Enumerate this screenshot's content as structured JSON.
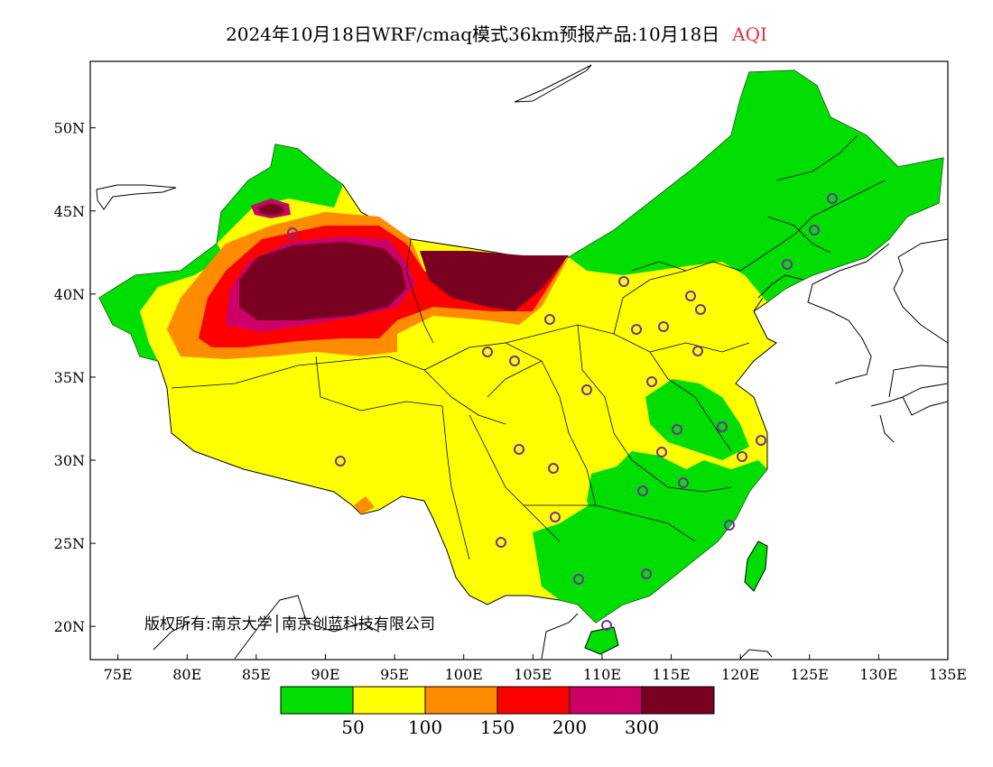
{
  "header": {
    "title": "2024年10月18日WRF/cmaq模式36km预报产品:10月18日",
    "product": "AQI"
  },
  "map": {
    "lon_range": [
      73,
      135
    ],
    "lat_range": [
      18,
      54
    ],
    "lon_ticks": [
      "75E",
      "80E",
      "85E",
      "90E",
      "95E",
      "100E",
      "105E",
      "110E",
      "115E",
      "120E",
      "125E",
      "130E",
      "135E"
    ],
    "lat_ticks": [
      "20N",
      "25N",
      "30N",
      "35N",
      "40N",
      "45N",
      "50N"
    ],
    "copyright": "版权所有:南京大学│南京创蓝科技有限公司"
  },
  "legend": {
    "colors": [
      "#00dd00",
      "#ffff00",
      "#ff8c00",
      "#ff0000",
      "#cc0066",
      "#7a0022"
    ],
    "labels": [
      "50",
      "100",
      "150",
      "200",
      "300"
    ]
  }
}
